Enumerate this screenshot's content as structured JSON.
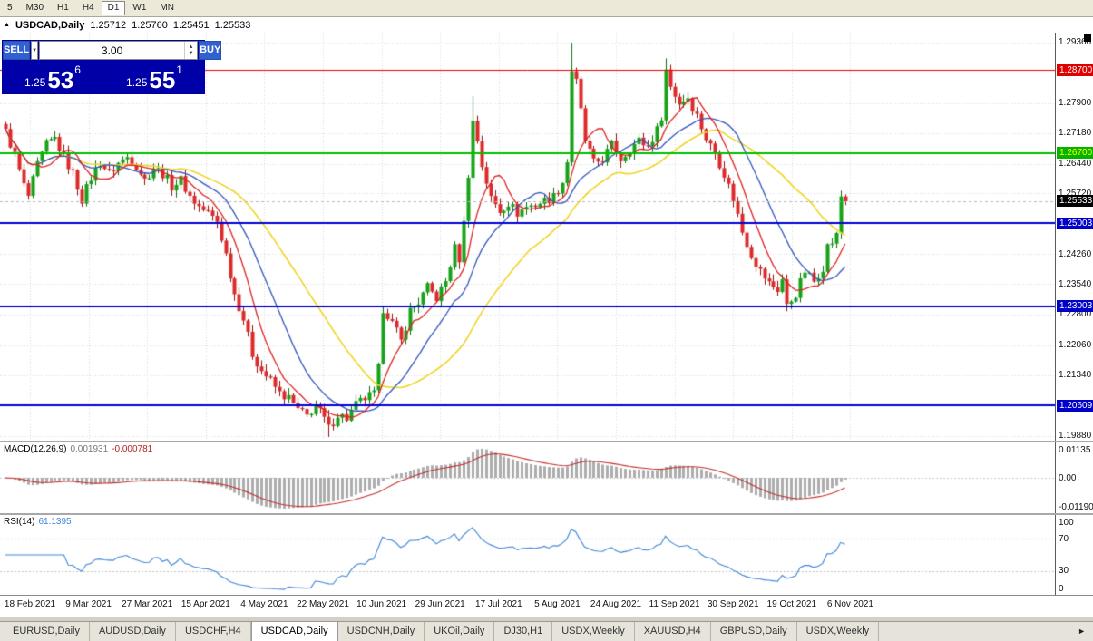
{
  "icons": {
    "chart_window": "▲",
    "dropdown_arrow": "▼",
    "spin_up": "▲",
    "spin_down": "▼",
    "tab_scroll_right": "►"
  },
  "toolbar": {
    "periods": [
      "5",
      "M30",
      "H1",
      "H4",
      "D1",
      "W1",
      "MN"
    ],
    "active": "D1"
  },
  "chart_header": {
    "symbol": "USDCAD,Daily",
    "open": "1.25712",
    "high": "1.25760",
    "low": "1.25451",
    "close": "1.25533"
  },
  "trade_panel": {
    "sell_label": "SELL",
    "buy_label": "BUY",
    "volume": "3.00",
    "sell_price": {
      "prefix": "1.25",
      "big": "53",
      "sup": "6"
    },
    "buy_price": {
      "prefix": "1.25",
      "big": "55",
      "sup": "1"
    }
  },
  "price_axis": {
    "labels": [
      "1.29360",
      "1.28630",
      "1.27900",
      "1.27180",
      "1.26440",
      "1.25720",
      "1.25000",
      "1.24260",
      "1.23540",
      "1.22800",
      "1.22060",
      "1.21340",
      "1.20610",
      "1.19880"
    ],
    "badges": [
      {
        "text": "1.28700",
        "bg": "#DF0000",
        "fg": "#FFFFFF"
      },
      {
        "text": "1.26700",
        "bg": "#00B400",
        "fg": "#FFFF00"
      },
      {
        "text": "1.25533",
        "bg": "#000000",
        "fg": "#FFFFFF"
      },
      {
        "text": "1.25003",
        "bg": "#0000C8",
        "fg": "#FFFFFF"
      },
      {
        "text": "1.23003",
        "bg": "#0000C8",
        "fg": "#FFFFFF"
      },
      {
        "text": "1.20609",
        "bg": "#0000C8",
        "fg": "#FFFFFF"
      }
    ]
  },
  "macd_panel": {
    "name": "MACD(12,26,9)",
    "value": "0.001931",
    "signal": "-0.000781",
    "axis": [
      "0.01135",
      "0.00",
      "-0.01190"
    ]
  },
  "rsi_panel": {
    "name": "RSI(14)",
    "value": "61.1395",
    "axis": [
      "100",
      "70",
      "30",
      "0"
    ],
    "levels": [
      70,
      30
    ]
  },
  "date_axis": [
    "18 Feb 2021",
    "9 Mar 2021",
    "27 Mar 2021",
    "15 Apr 2021",
    "4 May 2021",
    "22 May 2021",
    "10 Jun 2021",
    "29 Jun 2021",
    "17 Jul 2021",
    "5 Aug 2021",
    "24 Aug 2021",
    "11 Sep 2021",
    "30 Sep 2021",
    "19 Oct 2021",
    "6 Nov 2021"
  ],
  "tabs": {
    "items": [
      "EURUSD,Daily",
      "AUDUSD,Daily",
      "USDCHF,H4",
      "USDCAD,Daily",
      "USDCNH,Daily",
      "UKOil,Daily",
      "DJ30,H1",
      "USDX,Weekly",
      "XAUUSD,H4",
      "GBPUSD,Daily",
      "USDX,Weekly"
    ],
    "active_index": 3
  },
  "chart_data": {
    "type": "candlestick",
    "symbol": "USDCAD",
    "timeframe": "Daily",
    "price_max": 1.296,
    "price_min": 1.1976,
    "candle_count": 188,
    "last_price": 1.25533,
    "up_color": "#17A217",
    "down_color": "#DC2A2A",
    "up_wick": "#0B6F0B",
    "down_wick": "#8F1313",
    "close_waypoints": [
      [
        0,
        1.272
      ],
      [
        2,
        1.2665
      ],
      [
        4,
        1.259
      ],
      [
        5,
        1.2565
      ],
      [
        7,
        1.264
      ],
      [
        9,
        1.269
      ],
      [
        11,
        1.2705
      ],
      [
        13,
        1.266
      ],
      [
        15,
        1.262
      ],
      [
        17,
        1.2558
      ],
      [
        19,
        1.261
      ],
      [
        21,
        1.2648
      ],
      [
        23,
        1.262
      ],
      [
        25,
        1.2645
      ],
      [
        27,
        1.266
      ],
      [
        29,
        1.264
      ],
      [
        31,
        1.2605
      ],
      [
        33,
        1.2635
      ],
      [
        35,
        1.262
      ],
      [
        37,
        1.259
      ],
      [
        39,
        1.2605
      ],
      [
        41,
        1.2565
      ],
      [
        43,
        1.254
      ],
      [
        45,
        1.2525
      ],
      [
        47,
        1.2505
      ],
      [
        49,
        1.2425
      ],
      [
        51,
        1.233
      ],
      [
        53,
        1.227
      ],
      [
        55,
        1.2185
      ],
      [
        57,
        1.2145
      ],
      [
        59,
        1.212
      ],
      [
        61,
        1.209
      ],
      [
        63,
        1.2078
      ],
      [
        65,
        1.205
      ],
      [
        67,
        1.2035
      ],
      [
        69,
        1.2062
      ],
      [
        71,
        1.2028
      ],
      [
        72,
        1.2005
      ],
      [
        74,
        1.204
      ],
      [
        76,
        1.203
      ],
      [
        78,
        1.2062
      ],
      [
        80,
        1.2078
      ],
      [
        82,
        1.2088
      ],
      [
        83,
        1.215
      ],
      [
        84,
        1.2295
      ],
      [
        85,
        1.228
      ],
      [
        87,
        1.2238
      ],
      [
        88,
        1.2215
      ],
      [
        90,
        1.229
      ],
      [
        92,
        1.231
      ],
      [
        94,
        1.2345
      ],
      [
        96,
        1.232
      ],
      [
        98,
        1.236
      ],
      [
        100,
        1.244
      ],
      [
        101,
        1.2415
      ],
      [
        102,
        1.25
      ],
      [
        103,
        1.262
      ],
      [
        104,
        1.2745
      ],
      [
        105,
        1.27
      ],
      [
        106,
        1.264
      ],
      [
        108,
        1.256
      ],
      [
        110,
        1.253
      ],
      [
        112,
        1.255
      ],
      [
        114,
        1.2525
      ],
      [
        116,
        1.254
      ],
      [
        118,
        1.2545
      ],
      [
        120,
        1.2555
      ],
      [
        122,
        1.2565
      ],
      [
        124,
        1.26
      ],
      [
        125,
        1.265
      ],
      [
        126,
        1.287
      ],
      [
        127,
        1.284
      ],
      [
        129,
        1.27
      ],
      [
        131,
        1.2645
      ],
      [
        133,
        1.2655
      ],
      [
        135,
        1.269
      ],
      [
        137,
        1.2655
      ],
      [
        139,
        1.268
      ],
      [
        141,
        1.27
      ],
      [
        143,
        1.2685
      ],
      [
        145,
        1.2725
      ],
      [
        146,
        1.276
      ],
      [
        147,
        1.287
      ],
      [
        148,
        1.283
      ],
      [
        150,
        1.279
      ],
      [
        152,
        1.2805
      ],
      [
        154,
        1.276
      ],
      [
        156,
        1.2705
      ],
      [
        158,
        1.267
      ],
      [
        160,
        1.262
      ],
      [
        162,
        1.256
      ],
      [
        164,
        1.248
      ],
      [
        166,
        1.2425
      ],
      [
        168,
        1.2385
      ],
      [
        170,
        1.2355
      ],
      [
        172,
        1.234
      ],
      [
        173,
        1.2365
      ],
      [
        174,
        1.23
      ],
      [
        176,
        1.233
      ],
      [
        178,
        1.2385
      ],
      [
        180,
        1.236
      ],
      [
        182,
        1.2395
      ],
      [
        183,
        1.2445
      ],
      [
        184,
        1.2455
      ],
      [
        185,
        1.247
      ],
      [
        186,
        1.2565
      ],
      [
        187,
        1.2553
      ]
    ],
    "wick_events": [
      {
        "i": 11,
        "h": 1.2712
      },
      {
        "i": 72,
        "l": 1.1985
      },
      {
        "i": 104,
        "h": 1.2807
      },
      {
        "i": 126,
        "h": 1.2936
      },
      {
        "i": 147,
        "h": 1.2898
      },
      {
        "i": 174,
        "l": 1.2288
      }
    ],
    "moving_averages": [
      {
        "period": 8,
        "color": "#DD2222"
      },
      {
        "period": 17,
        "color": "#3355BB"
      },
      {
        "period": 34,
        "color": "#EFD427"
      }
    ],
    "h_lines": [
      {
        "price": 1.287,
        "color": "#EE0000",
        "width": 1
      },
      {
        "price": 1.267,
        "color": "#00BE00",
        "width": 2
      },
      {
        "price": 1.25003,
        "color": "#0000D8",
        "width": 2
      },
      {
        "price": 1.23003,
        "color": "#0000D8",
        "width": 2
      },
      {
        "price": 1.20609,
        "color": "#0000D8",
        "width": 2
      }
    ],
    "macd": {
      "fast": 12,
      "slow": 26,
      "signal": 9,
      "hist_color": "#ADADAD",
      "line_color": "#C23030"
    },
    "rsi": {
      "period": 14,
      "color": "#3E86D8",
      "current": 61.1395
    }
  }
}
